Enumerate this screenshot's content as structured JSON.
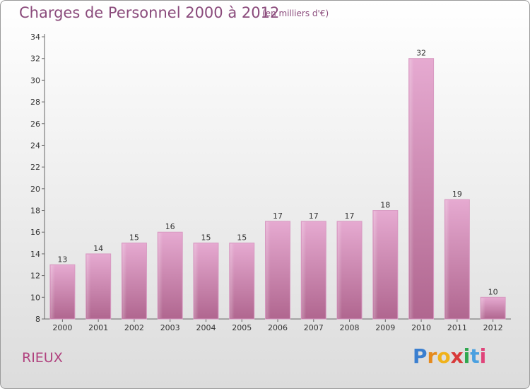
{
  "title": "Charges de Personnel 2000 à 2012",
  "subtitle": "(en milliers d'€)",
  "commune": "RIEUX",
  "logo": {
    "letters": [
      "P",
      "r",
      "o",
      "x",
      "i",
      "t",
      "i"
    ],
    "colors": [
      "#3a7fd0",
      "#e58a1d",
      "#f0b21b",
      "#d83a3a",
      "#2fa84f",
      "#4aa0e0",
      "#e0447a"
    ]
  },
  "chart_data": {
    "type": "bar",
    "categories": [
      "2000",
      "2001",
      "2002",
      "2003",
      "2004",
      "2005",
      "2006",
      "2007",
      "2008",
      "2009",
      "2010",
      "2011",
      "2012"
    ],
    "values": [
      13,
      14,
      15,
      16,
      15,
      15,
      17,
      17,
      17,
      18,
      32,
      19,
      10
    ],
    "ylim": [
      8,
      34
    ],
    "yticks": [
      8,
      10,
      12,
      14,
      16,
      18,
      20,
      22,
      24,
      26,
      28,
      30,
      32,
      34
    ],
    "bar_color": "#c96aa8",
    "grid": false
  }
}
